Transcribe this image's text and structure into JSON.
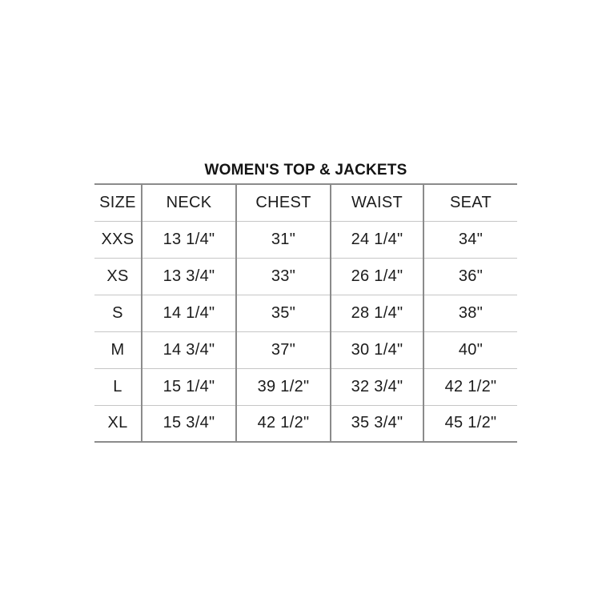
{
  "page": {
    "background": "#ffffff"
  },
  "style": {
    "border_strong": "#8b8b8b",
    "border_light": "#c6c6c6",
    "text": "#1c1c1c",
    "title_text": "#141414"
  },
  "chart_data": {
    "type": "table",
    "title": "WOMEN'S TOP & JACKETS",
    "columns": [
      "SIZE",
      "NECK",
      "CHEST",
      "WAIST",
      "SEAT"
    ],
    "rows": [
      [
        "XXS",
        "13 1/4\"",
        "31\"",
        "24 1/4\"",
        "34\""
      ],
      [
        "XS",
        "13 3/4\"",
        "33\"",
        "26 1/4\"",
        "36\""
      ],
      [
        "S",
        "14 1/4\"",
        "35\"",
        "28 1/4\"",
        "38\""
      ],
      [
        "M",
        "14 3/4\"",
        "37\"",
        "30 1/4\"",
        "40\""
      ],
      [
        "L",
        "15 1/4\"",
        "39 1/2\"",
        "32 3/4\"",
        "42 1/2\""
      ],
      [
        "XL",
        "15 3/4\"",
        "42 1/2\"",
        "35 3/4\"",
        "45 1/2\""
      ]
    ],
    "layout": {
      "grid": "vertical separators strong gray, horizontal separators light gray",
      "outer_borders": "top and bottom only"
    }
  }
}
